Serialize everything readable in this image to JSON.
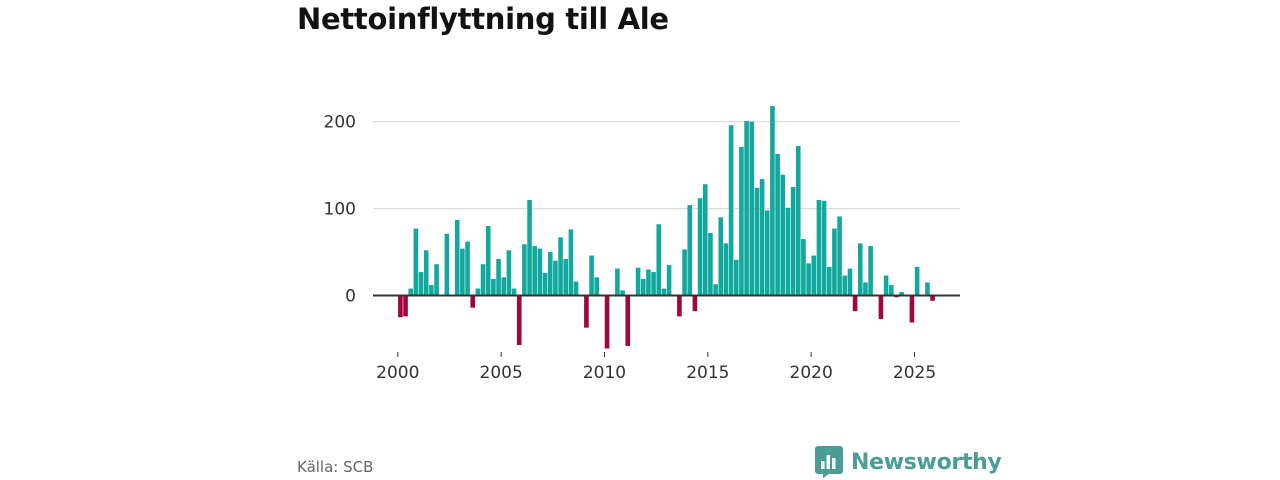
{
  "title": "Nettoinflyttning till Ale",
  "source": "Källa: SCB",
  "brand": {
    "name": "Newsworthy",
    "icon": "newsworthy-logo-icon",
    "color": "#4a9e96"
  },
  "colors": {
    "positive": "#13a89e",
    "negative": "#a0053f",
    "grid": "#dcdcdc",
    "zero_line": "#333333"
  },
  "chart_data": {
    "type": "bar",
    "title": "Nettoinflyttning till Ale",
    "xlabel": "",
    "ylabel": "",
    "ylim": [
      -65,
      225
    ],
    "xlim": [
      1998.8,
      2027.2
    ],
    "grid": "horizontal",
    "yticks": [
      0,
      100,
      200
    ],
    "xticks": [
      2000,
      2005,
      2010,
      2015,
      2020,
      2025
    ],
    "x": [
      2000.125,
      2000.375,
      2000.625,
      2000.875,
      2001.125,
      2001.375,
      2001.625,
      2001.875,
      2002.125,
      2002.375,
      2002.625,
      2002.875,
      2003.125,
      2003.375,
      2003.625,
      2003.875,
      2004.125,
      2004.375,
      2004.625,
      2004.875,
      2005.125,
      2005.375,
      2005.625,
      2005.875,
      2006.125,
      2006.375,
      2006.625,
      2006.875,
      2007.125,
      2007.375,
      2007.625,
      2007.875,
      2008.125,
      2008.375,
      2008.625,
      2008.875,
      2009.125,
      2009.375,
      2009.625,
      2009.875,
      2010.125,
      2010.375,
      2010.625,
      2010.875,
      2011.125,
      2011.375,
      2011.625,
      2011.875,
      2012.125,
      2012.375,
      2012.625,
      2012.875,
      2013.125,
      2013.375,
      2013.625,
      2013.875,
      2014.125,
      2014.375,
      2014.625,
      2014.875,
      2015.125,
      2015.375,
      2015.625,
      2015.875,
      2016.125,
      2016.375,
      2016.625,
      2016.875,
      2017.125,
      2017.375,
      2017.625,
      2017.875,
      2018.125,
      2018.375,
      2018.625,
      2018.875,
      2019.125,
      2019.375,
      2019.625,
      2019.875,
      2020.125,
      2020.375,
      2020.625,
      2020.875,
      2021.125,
      2021.375,
      2021.625,
      2021.875,
      2022.125,
      2022.375,
      2022.625,
      2022.875,
      2023.125,
      2023.375,
      2023.625,
      2023.875,
      2024.125,
      2024.375,
      2024.625,
      2024.875,
      2025.125,
      2025.375,
      2025.625,
      2025.875
    ],
    "values": [
      -25,
      -24,
      8,
      77,
      27,
      52,
      12,
      36,
      0,
      71,
      0,
      87,
      54,
      62,
      -14,
      8,
      36,
      80,
      19,
      42,
      21,
      52,
      8,
      -57,
      59,
      110,
      57,
      54,
      26,
      50,
      40,
      67,
      42,
      76,
      16,
      0,
      -37,
      46,
      21,
      0,
      -61,
      0,
      31,
      6,
      -58,
      0,
      32,
      19,
      30,
      27,
      82,
      8,
      35,
      0,
      -24,
      53,
      104,
      -18,
      112,
      128,
      72,
      13,
      90,
      60,
      196,
      41,
      171,
      201,
      200,
      124,
      134,
      98,
      218,
      163,
      139,
      101,
      125,
      172,
      65,
      37,
      46,
      110,
      109,
      33,
      77,
      91,
      23,
      31,
      -18,
      60,
      15,
      57,
      0,
      -27,
      23,
      12,
      -2,
      4,
      0,
      -31,
      33,
      0,
      15,
      -6
    ]
  }
}
